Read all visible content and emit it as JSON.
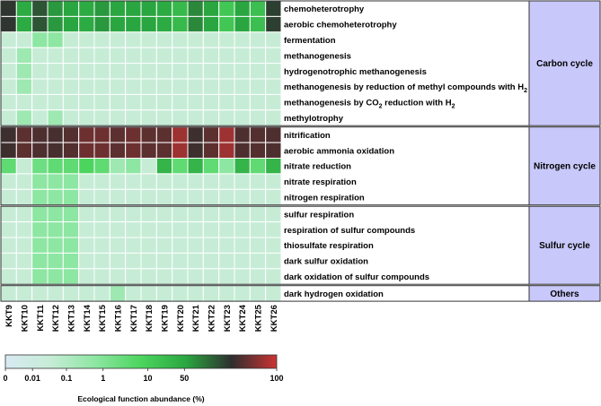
{
  "chart_data": {
    "type": "heatmap",
    "title": "",
    "samples": [
      "KKT9",
      "KKT10",
      "KKT11",
      "KKT12",
      "KKT13",
      "KKT14",
      "KKT15",
      "KKT16",
      "KKT17",
      "KKT18",
      "KKT19",
      "KKT20",
      "KKT21",
      "KKT22",
      "KKT23",
      "KKT24",
      "KKT25",
      "KKT26"
    ],
    "functions": [
      {
        "label": "chemoheterotrophy"
      },
      {
        "label": "aerobic chemoheterotrophy"
      },
      {
        "label": "fermentation"
      },
      {
        "label": "methanogenesis"
      },
      {
        "label": "hydrogenotrophic methanogenesis"
      },
      {
        "label": "methanogenesis by reduction of methyl compounds with H",
        "sub": "2"
      },
      {
        "label": "methanogenesis by CO",
        "sub": "2",
        "suffix": " reduction with H",
        "sub2": "2"
      },
      {
        "label": "methylotrophy"
      },
      {
        "label": "nitrification"
      },
      {
        "label": "aerobic ammonia oxidation"
      },
      {
        "label": "nitrate reduction"
      },
      {
        "label": "nitrate respiration"
      },
      {
        "label": "nitrogen respiration"
      },
      {
        "label": "sulfur respiration"
      },
      {
        "label": "respiration of sulfur compounds"
      },
      {
        "label": "thiosulfate respiration"
      },
      {
        "label": "dark sulfur oxidation"
      },
      {
        "label": "dark oxidation of sulfur compounds"
      },
      {
        "label": "dark hydrogen oxidation"
      }
    ],
    "groups": [
      {
        "name": "Carbon cycle",
        "rows": [
          0,
          7
        ]
      },
      {
        "name": "Nitrogen cycle",
        "rows": [
          8,
          12
        ]
      },
      {
        "name": "Sulfur cycle",
        "rows": [
          13,
          17
        ]
      },
      {
        "name": "Others",
        "rows": [
          18,
          18
        ]
      }
    ],
    "values": [
      [
        45,
        8,
        30,
        12,
        10,
        8,
        12,
        10,
        10,
        10,
        8,
        4,
        15,
        10,
        2,
        10,
        3,
        40
      ],
      [
        45,
        8,
        30,
        12,
        10,
        8,
        12,
        10,
        10,
        10,
        8,
        4,
        15,
        10,
        2,
        10,
        3,
        40
      ],
      [
        0.01,
        0.01,
        0.1,
        0.1,
        0.01,
        0.01,
        0.01,
        0.01,
        0.01,
        0.01,
        0.01,
        0.01,
        0.01,
        0.01,
        0.01,
        0.01,
        0.01,
        0.01
      ],
      [
        0.01,
        0.05,
        0.01,
        0.01,
        0.01,
        0.01,
        0.01,
        0.01,
        0.01,
        0.01,
        0.01,
        0.01,
        0.01,
        0.01,
        0.01,
        0.01,
        0.01,
        0.01
      ],
      [
        0.01,
        0.05,
        0.01,
        0.01,
        0.01,
        0.01,
        0.01,
        0.01,
        0.01,
        0.01,
        0.01,
        0.01,
        0.01,
        0.01,
        0.01,
        0.01,
        0.01,
        0.01
      ],
      [
        0.01,
        0.05,
        0.01,
        0.01,
        0.01,
        0.01,
        0.01,
        0.01,
        0.01,
        0.01,
        0.01,
        0.01,
        0.01,
        0.01,
        0.01,
        0.01,
        0.01,
        0.01
      ],
      [
        0.01,
        0.01,
        0.01,
        0.01,
        0.01,
        0.01,
        0.01,
        0.01,
        0.01,
        0.01,
        0.01,
        0.01,
        0.01,
        0.01,
        0.01,
        0.01,
        0.01,
        0.01
      ],
      [
        0.01,
        0.05,
        0.01,
        0.05,
        0.01,
        0.01,
        0.01,
        0.01,
        0.01,
        0.01,
        0.01,
        0.01,
        0.01,
        0.01,
        0.01,
        0.01,
        0.01,
        0.01
      ],
      [
        55,
        65,
        60,
        58,
        62,
        70,
        70,
        65,
        70,
        65,
        65,
        85,
        55,
        65,
        85,
        60,
        62,
        60
      ],
      [
        55,
        65,
        60,
        58,
        62,
        70,
        70,
        65,
        70,
        65,
        65,
        85,
        55,
        65,
        85,
        60,
        62,
        60
      ],
      [
        0.5,
        0.01,
        0.3,
        0.5,
        0.5,
        1,
        0.5,
        0.05,
        0.1,
        0.01,
        5,
        0.5,
        5,
        0.5,
        0.1,
        5,
        0.5,
        5
      ],
      [
        0.01,
        0.01,
        0.1,
        0.1,
        0.1,
        0.01,
        0.01,
        0.01,
        0.01,
        0.01,
        0.01,
        0.01,
        0.01,
        0.01,
        0.01,
        0.01,
        0.01,
        0.01
      ],
      [
        0.01,
        0.01,
        0.1,
        0.1,
        0.1,
        0.01,
        0.01,
        0.01,
        0.01,
        0.01,
        0.01,
        0.01,
        0.01,
        0.01,
        0.01,
        0.01,
        0.01,
        0.01
      ],
      [
        0.01,
        0.01,
        0.1,
        0.1,
        0.1,
        0.01,
        0.01,
        0.01,
        0.01,
        0.01,
        0.01,
        0.01,
        0.01,
        0.01,
        0.01,
        0.01,
        0.01,
        0.01
      ],
      [
        0.01,
        0.01,
        0.1,
        0.1,
        0.1,
        0.01,
        0.01,
        0.01,
        0.01,
        0.01,
        0.01,
        0.01,
        0.01,
        0.01,
        0.01,
        0.01,
        0.01,
        0.01
      ],
      [
        0.01,
        0.01,
        0.1,
        0.1,
        0.1,
        0.01,
        0.01,
        0.01,
        0.01,
        0.01,
        0.01,
        0.01,
        0.01,
        0.01,
        0.01,
        0.01,
        0.01,
        0.01
      ],
      [
        0.01,
        0.01,
        0.1,
        0.1,
        0.1,
        0.01,
        0.01,
        0.01,
        0.01,
        0.01,
        0.01,
        0.01,
        0.01,
        0.01,
        0.01,
        0.01,
        0.01,
        0.01
      ],
      [
        0.01,
        0.01,
        0.1,
        0.1,
        0.1,
        0.01,
        0.01,
        0.01,
        0.01,
        0.01,
        0.01,
        0.01,
        0.01,
        0.01,
        0.01,
        0.01,
        0.01,
        0.01
      ],
      [
        0.01,
        0.01,
        0.01,
        0.01,
        0.01,
        0.01,
        0.01,
        0.05,
        0.01,
        0.01,
        0.01,
        0.01,
        0.01,
        0.01,
        0.01,
        0.01,
        0.01,
        0.01
      ]
    ],
    "colorbar": {
      "title": "Ecological function abundance (%)",
      "ticks": [
        "0",
        "0.01",
        "0.1",
        "1",
        "10",
        "50",
        "100"
      ],
      "stops": [
        {
          "value": 0,
          "color": "#d8eaf2"
        },
        {
          "value": 0.01,
          "color": "#c6ecd6"
        },
        {
          "value": 0.1,
          "color": "#8de6a2"
        },
        {
          "value": 1,
          "color": "#4cd55e"
        },
        {
          "value": 10,
          "color": "#2aa640"
        },
        {
          "value": 50,
          "color": "#2e2e2e"
        },
        {
          "value": 100,
          "color": "#cc3333"
        }
      ]
    },
    "group_color": "#c8c8fa"
  }
}
